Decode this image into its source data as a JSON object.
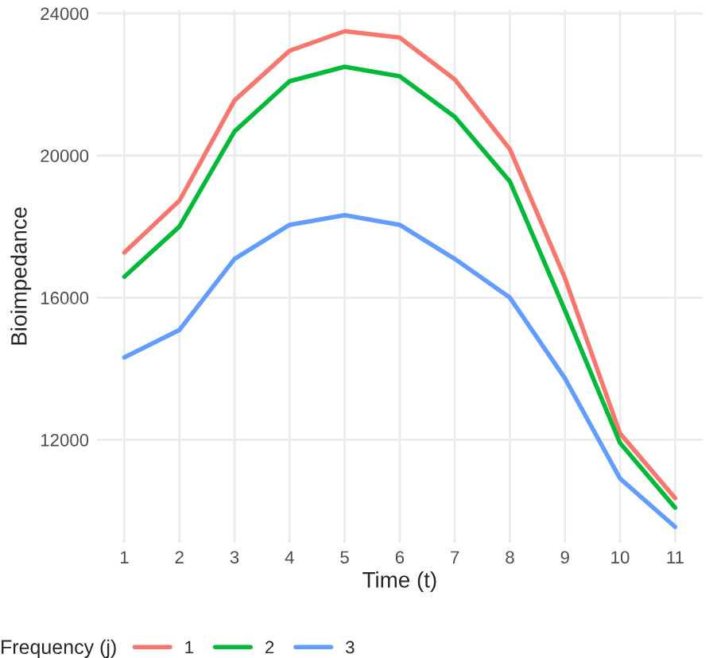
{
  "chart_data": {
    "type": "line",
    "xlabel": "Time (t)",
    "ylabel": "Bioimpedance",
    "legend_title": "Frequency (j)",
    "x": [
      1,
      2,
      3,
      4,
      5,
      6,
      7,
      8,
      9,
      10,
      11
    ],
    "series": [
      {
        "name": "1",
        "color": "#f8766d",
        "values": [
          17270,
          18730,
          21550,
          22950,
          23500,
          23320,
          22140,
          20180,
          16550,
          12180,
          10360
        ]
      },
      {
        "name": "2",
        "color": "#00ba38",
        "values": [
          16590,
          18000,
          20680,
          22090,
          22500,
          22230,
          21090,
          19270,
          15640,
          11910,
          10090
        ]
      },
      {
        "name": "3",
        "color": "#619cff",
        "values": [
          14320,
          15090,
          17090,
          18050,
          18320,
          18050,
          17090,
          16000,
          13730,
          10910,
          9550
        ]
      }
    ],
    "xlim": [
      0.5,
      11.5
    ],
    "ylim": [
      9100,
      24100
    ],
    "xticks": [
      1,
      2,
      3,
      4,
      5,
      6,
      7,
      8,
      9,
      10,
      11
    ],
    "yticks": [
      12000,
      16000,
      20000,
      24000
    ],
    "grid": true,
    "legend": "bottom",
    "marker": "none",
    "line_style": "solid"
  }
}
